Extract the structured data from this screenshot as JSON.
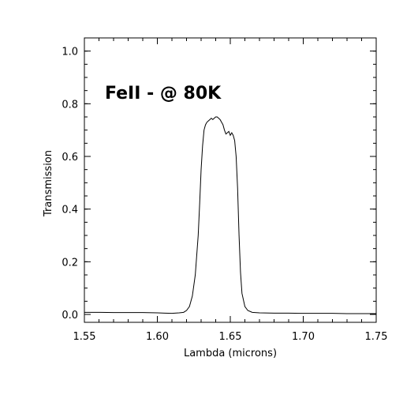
{
  "chart_data": {
    "type": "line",
    "title": "",
    "annotation": "FeII - @ 80K",
    "xlabel": "Lambda (microns)",
    "ylabel": "Transmission",
    "xlim": [
      1.55,
      1.75
    ],
    "ylim": [
      -0.03,
      1.05
    ],
    "x_ticks": [
      1.55,
      1.6,
      1.65,
      1.7,
      1.75
    ],
    "x_tick_labels": [
      "1.55",
      "1.60",
      "1.65",
      "1.70",
      "1.75"
    ],
    "y_ticks": [
      0.0,
      0.2,
      0.4,
      0.6,
      0.8,
      1.0
    ],
    "y_tick_labels": [
      "0.0",
      "0.2",
      "0.4",
      "0.6",
      "0.8",
      "1.0"
    ],
    "grid": false,
    "legend": "none",
    "colors": {
      "line": "#000000",
      "axes": "#000000",
      "background": "#ffffff"
    },
    "series": [
      {
        "x": [
          1.55,
          1.56,
          1.57,
          1.58,
          1.59,
          1.6,
          1.605,
          1.61,
          1.615,
          1.618,
          1.62,
          1.622,
          1.624,
          1.626,
          1.628,
          1.629,
          1.63,
          1.631,
          1.632,
          1.633,
          1.634,
          1.635,
          1.636,
          1.637,
          1.638,
          1.639,
          1.64,
          1.641,
          1.642,
          1.643,
          1.644,
          1.645,
          1.646,
          1.647,
          1.648,
          1.649,
          1.65,
          1.651,
          1.652,
          1.653,
          1.654,
          1.655,
          1.656,
          1.657,
          1.658,
          1.66,
          1.662,
          1.665,
          1.67,
          1.68,
          1.69,
          1.7,
          1.71,
          1.72,
          1.73,
          1.74,
          1.75
        ],
        "values": [
          0.008,
          0.008,
          0.007,
          0.007,
          0.007,
          0.006,
          0.005,
          0.004,
          0.006,
          0.008,
          0.015,
          0.03,
          0.07,
          0.15,
          0.3,
          0.42,
          0.55,
          0.64,
          0.7,
          0.72,
          0.73,
          0.735,
          0.74,
          0.745,
          0.74,
          0.745,
          0.75,
          0.75,
          0.745,
          0.74,
          0.73,
          0.72,
          0.7,
          0.685,
          0.69,
          0.695,
          0.68,
          0.69,
          0.68,
          0.66,
          0.6,
          0.48,
          0.3,
          0.16,
          0.08,
          0.03,
          0.015,
          0.008,
          0.006,
          0.005,
          0.005,
          0.004,
          0.004,
          0.004,
          0.003,
          0.003,
          0.003
        ]
      }
    ]
  }
}
